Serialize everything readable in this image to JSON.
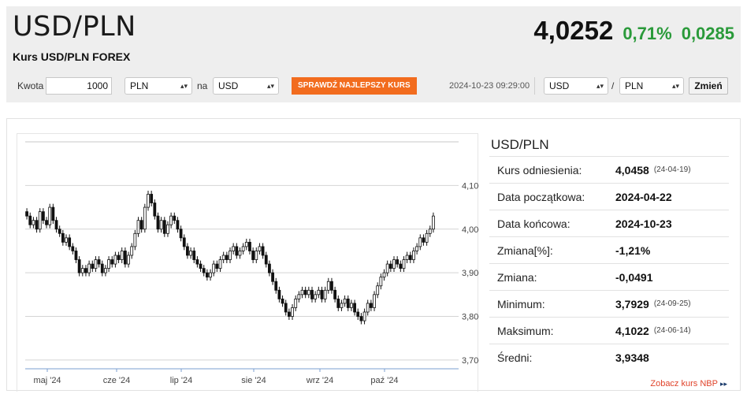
{
  "header": {
    "pair": "USD/PLN",
    "subtitle": "Kurs USD/PLN FOREX",
    "price": "4,0252",
    "change_pct": "0,71%",
    "change_abs": "0,0285"
  },
  "converter": {
    "amount_label": "Kwota",
    "amount_value": "1000",
    "from_currency": "PLN",
    "on_label": "na",
    "to_currency": "USD",
    "best_rate_button": "SPRAWDŹ NAJLEPSZY KURS",
    "timestamp": "2024-10-23 09:29:00",
    "pair_base": "USD",
    "pair_sep": "/",
    "pair_quote": "PLN",
    "change_button": "Zmień"
  },
  "stats": {
    "title": "USD/PLN",
    "rows": [
      {
        "label": "Kurs odniesienia:",
        "value": "4,0458",
        "date": "(24-04-19)"
      },
      {
        "label": "Data początkowa:",
        "value": "2024-04-22",
        "date": ""
      },
      {
        "label": "Data końcowa:",
        "value": "2024-10-23",
        "date": ""
      },
      {
        "label": "Zmiana[%]:",
        "value": "-1,21%",
        "date": ""
      },
      {
        "label": "Zmiana:",
        "value": "-0,0491",
        "date": ""
      },
      {
        "label": "Minimum:",
        "value": "3,7929",
        "date": "(24-09-25)"
      },
      {
        "label": "Maksimum:",
        "value": "4,1022",
        "date": "(24-06-14)"
      },
      {
        "label": "Średni:",
        "value": "3,9348",
        "date": ""
      }
    ]
  },
  "nbp_link": "Zobacz kurs NBP",
  "colors": {
    "accent_orange": "#f26c1e",
    "positive_green": "#2a9a3a",
    "link_red": "#e0432a"
  },
  "chart_data": {
    "type": "candlestick",
    "x_labels": [
      "maj '24",
      "cze '24",
      "lip '24",
      "sie '24",
      "wrz '24",
      "paź '24"
    ],
    "y_ticks": [
      "4,1000",
      "4,0000",
      "3,9000",
      "3,8000",
      "3,7000"
    ],
    "y_tick_values": [
      4.1,
      4.0,
      3.9,
      3.8,
      3.7
    ],
    "ylim": [
      3.68,
      4.2
    ],
    "grid": true,
    "closes": [
      4.03,
      4.01,
      4.02,
      4.0,
      4.04,
      4.02,
      4.01,
      4.05,
      4.02,
      4.0,
      3.99,
      3.97,
      3.98,
      3.96,
      3.95,
      3.93,
      3.9,
      3.91,
      3.9,
      3.92,
      3.91,
      3.93,
      3.92,
      3.9,
      3.91,
      3.93,
      3.92,
      3.94,
      3.93,
      3.95,
      3.92,
      3.94,
      3.96,
      3.99,
      4.02,
      4.0,
      4.05,
      4.08,
      4.06,
      4.03,
      4.0,
      4.02,
      3.99,
      4.01,
      4.03,
      4.02,
      4.0,
      3.98,
      3.96,
      3.94,
      3.95,
      3.93,
      3.92,
      3.91,
      3.9,
      3.89,
      3.9,
      3.92,
      3.91,
      3.93,
      3.94,
      3.93,
      3.95,
      3.96,
      3.94,
      3.95,
      3.96,
      3.97,
      3.95,
      3.93,
      3.95,
      3.96,
      3.94,
      3.92,
      3.9,
      3.88,
      3.86,
      3.84,
      3.83,
      3.81,
      3.8,
      3.82,
      3.84,
      3.85,
      3.86,
      3.85,
      3.86,
      3.84,
      3.85,
      3.86,
      3.84,
      3.86,
      3.88,
      3.86,
      3.84,
      3.82,
      3.83,
      3.84,
      3.82,
      3.83,
      3.81,
      3.8,
      3.79,
      3.81,
      3.83,
      3.82,
      3.85,
      3.87,
      3.89,
      3.9,
      3.92,
      3.91,
      3.93,
      3.92,
      3.91,
      3.93,
      3.94,
      3.93,
      3.95,
      3.96,
      3.98,
      3.97,
      3.99,
      4.0,
      4.03
    ]
  }
}
